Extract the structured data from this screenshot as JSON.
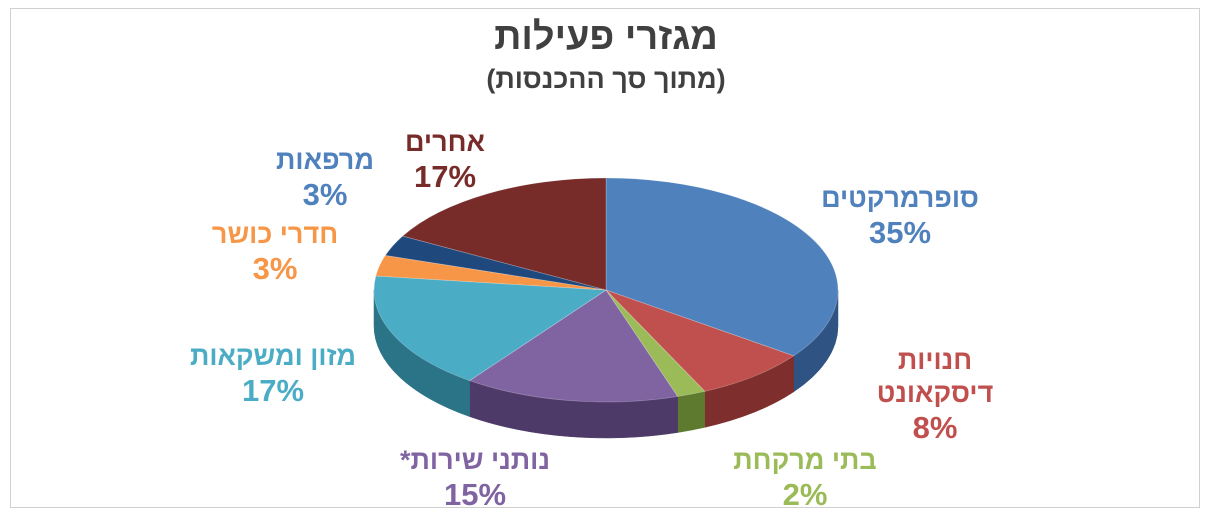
{
  "title": "מגזרי פעילות",
  "subtitle": "(מתוך סך ההכנסות)",
  "chart_data": {
    "type": "pie",
    "title": "מגזרי פעילות",
    "subtitle": "(מתוך סך ההכנסות)",
    "three_d": true,
    "slices": [
      {
        "label": "סופרמרקטים",
        "value": 35,
        "value_label": "35%",
        "color": "#4F81BD",
        "dark": "#2F5484",
        "text_color": "#4F81BD"
      },
      {
        "label": "חנויות דיסקאונט",
        "label_lines": [
          "חנויות",
          "דיסקאונט"
        ],
        "value": 8,
        "value_label": "8%",
        "color": "#C0504D",
        "dark": "#7E2E2C",
        "text_color": "#C0504D"
      },
      {
        "label": "בתי מרקחת",
        "value": 2,
        "value_label": "2%",
        "color": "#9BBB59",
        "dark": "#5E7A2E",
        "text_color": "#9BBB59"
      },
      {
        "label": "נותני שירות*",
        "value": 15,
        "value_label": "15%",
        "color": "#8064A2",
        "dark": "#4E3A68",
        "text_color": "#8064A2"
      },
      {
        "label": "מזון ומשקאות",
        "value": 17,
        "value_label": "17%",
        "color": "#4BACC6",
        "dark": "#2B7487",
        "text_color": "#4BACC6"
      },
      {
        "label": "חדרי כושר",
        "value": 3,
        "value_label": "3%",
        "color": "#F79646",
        "dark": "#B0621E",
        "text_color": "#F79646"
      },
      {
        "label": "מרפאות",
        "value": 3,
        "value_label": "3%",
        "color": "#1F497D",
        "dark": "#132D4E",
        "text_color": "#4F81BD"
      },
      {
        "label": "אחרים",
        "value": 17,
        "value_label": "17%",
        "color": "#772C2A",
        "dark": "#4A1A19",
        "text_color": "#772C2A"
      }
    ],
    "legend": "none"
  }
}
